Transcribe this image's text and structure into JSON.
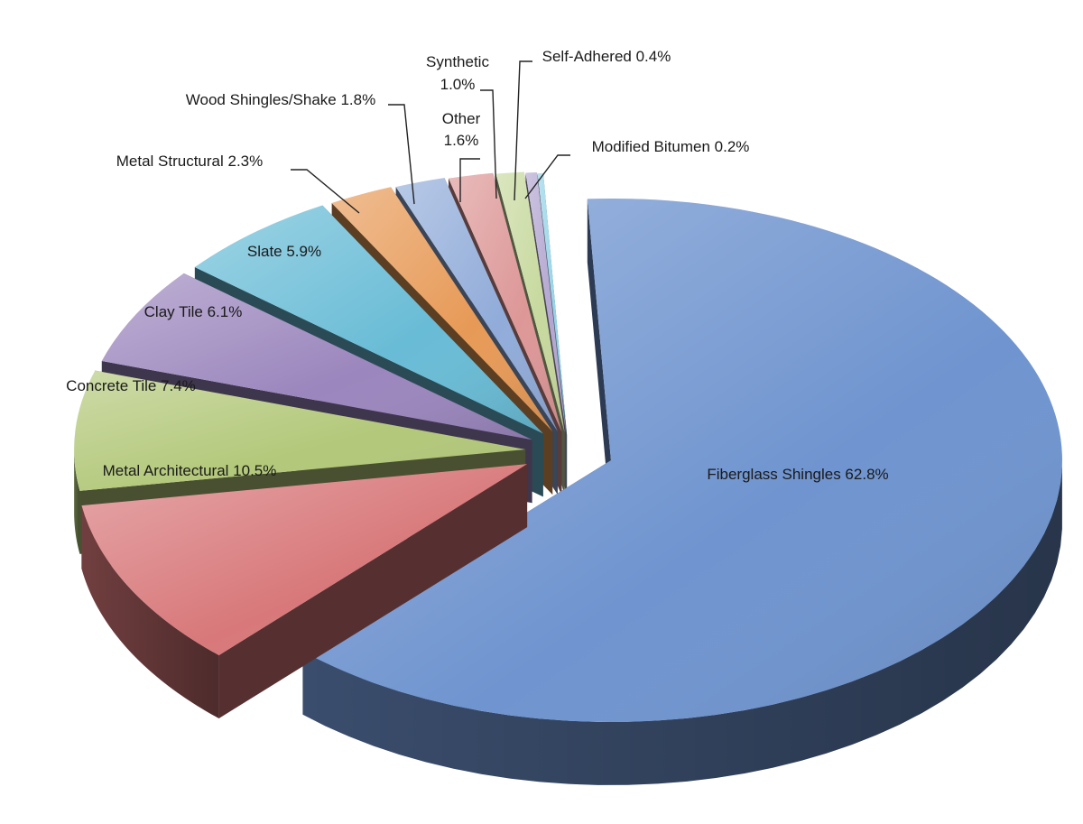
{
  "chart_data": {
    "type": "pie",
    "style": "3d-exploded",
    "title": "",
    "legend": "none",
    "slices": [
      {
        "label": "Fiberglass Shingles",
        "value": 62.8,
        "value_label": "62.8%",
        "color": "#6f94cf"
      },
      {
        "label": "Metal Architectural",
        "value": 10.5,
        "value_label": "10.5%",
        "color": "#d8787a"
      },
      {
        "label": "Concrete Tile",
        "value": 7.4,
        "value_label": "7.4%",
        "color": "#b3c87a"
      },
      {
        "label": "Clay Tile",
        "value": 6.1,
        "value_label": "6.1%",
        "color": "#9b86bd"
      },
      {
        "label": "Slate",
        "value": 5.9,
        "value_label": "5.9%",
        "color": "#69bcd6"
      },
      {
        "label": "Metal Structural",
        "value": 2.3,
        "value_label": "2.3%",
        "color": "#e79a57"
      },
      {
        "label": "Wood Shingles/Shake",
        "value": 1.8,
        "value_label": "1.8%",
        "color": "#91acd9"
      },
      {
        "label": "Other",
        "value": 1.6,
        "value_label": "1.6%",
        "color": "#dd9797"
      },
      {
        "label": "Synthetic",
        "value": 1.0,
        "value_label": "1.0%",
        "color": "#c7d99e"
      },
      {
        "label": "Self-Adhered",
        "value": 0.4,
        "value_label": "0.4%",
        "color": "#b3a6d0"
      },
      {
        "label": "Modified Bitumen",
        "value": 0.2,
        "value_label": "0.2%",
        "color": "#95d3e6"
      }
    ]
  }
}
